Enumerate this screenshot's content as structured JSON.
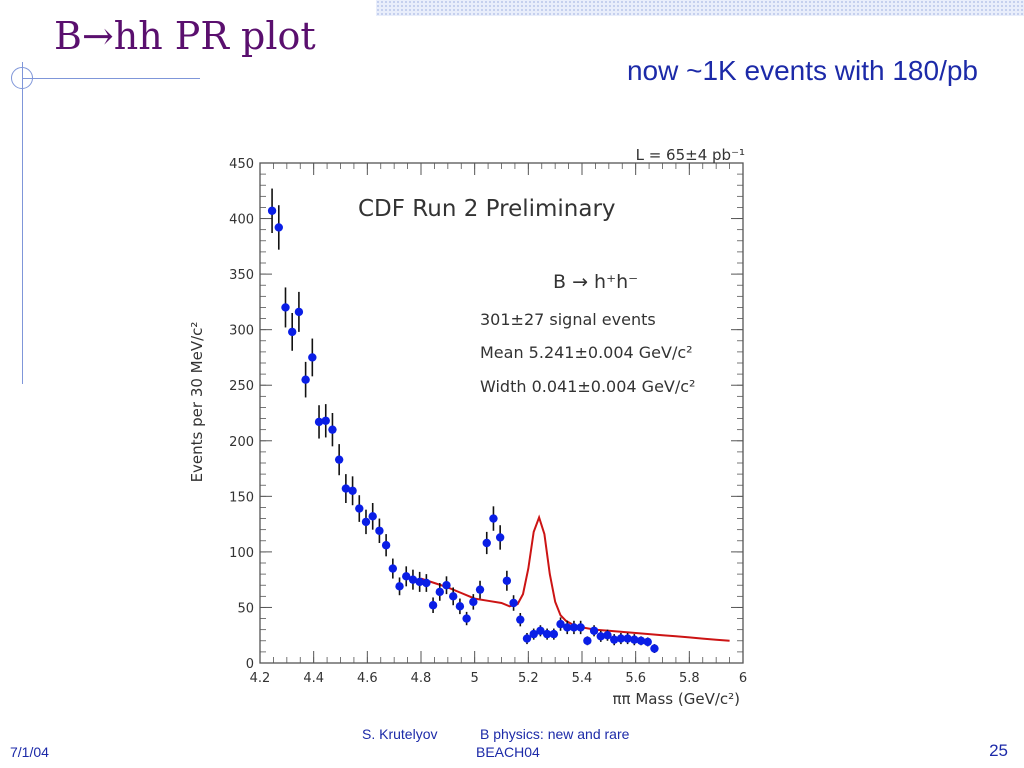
{
  "slide": {
    "title": "B→hh PR plot",
    "subtitle": "now ~1K events with 180/pb",
    "footer": {
      "date": "7/1/04",
      "author": "S. Krutelyov",
      "talk_title": "B physics: new and rare",
      "conference": "BEACH04",
      "page": "25"
    }
  },
  "chart_data": {
    "type": "scatter",
    "title": "CDF Run 2 Preliminary",
    "luminosity": "L = 65±4 pb⁻¹",
    "process": "B → h⁺h⁻",
    "fit_info": [
      "301±27 signal events",
      "Mean 5.241±0.004 GeV/c²",
      "Width 0.041±0.004 GeV/c²"
    ],
    "xlabel": "ππ Mass (GeV/c²)",
    "ylabel": "Events per 30 MeV/c²",
    "xlim": [
      4.2,
      6.0
    ],
    "ylim": [
      0,
      450
    ],
    "xticks": [
      "4.2",
      "4.4",
      "4.6",
      "4.8",
      "5",
      "5.2",
      "5.4",
      "5.6",
      "5.8",
      "6"
    ],
    "yticks": [
      "0",
      "50",
      "100",
      "150",
      "200",
      "250",
      "300",
      "350",
      "400",
      "450"
    ],
    "series": [
      {
        "marker": "circle",
        "color": "#0a1ee6",
        "x": [
          4.22,
          4.245,
          4.27,
          4.295,
          4.32,
          4.345,
          4.37,
          4.395,
          4.42,
          4.445,
          4.47,
          4.495,
          4.52,
          4.545,
          4.57,
          4.595,
          4.62,
          4.645,
          4.67,
          4.695,
          4.72,
          4.745,
          4.77,
          4.795,
          4.82,
          4.845,
          4.87,
          4.895,
          4.92,
          4.945,
          4.97,
          4.995,
          5.02,
          5.045,
          5.07,
          5.095,
          5.12,
          5.145,
          5.17,
          5.195,
          5.22,
          5.245,
          5.27,
          5.295,
          5.32,
          5.345,
          5.37,
          5.395,
          5.42,
          5.445,
          5.47,
          5.495,
          5.52,
          5.545,
          5.57,
          5.595,
          5.62,
          5.645,
          5.67,
          5.695,
          5.72,
          5.745,
          5.77,
          5.795,
          5.82,
          5.845,
          5.87,
          5.895,
          5.92,
          5.945
        ],
        "y": [
          null,
          407,
          392,
          320,
          298,
          316,
          255,
          275,
          217,
          218,
          210,
          183,
          157,
          155,
          139,
          127,
          132,
          119,
          106,
          85,
          69,
          78,
          75,
          73,
          72,
          52,
          64,
          70,
          60,
          51,
          40,
          55,
          66,
          108,
          130,
          113,
          74,
          54,
          39,
          22,
          26,
          29,
          26,
          26,
          35,
          32,
          32,
          32,
          20,
          29,
          24,
          25,
          21,
          22,
          22,
          21,
          20,
          19,
          13,
          null,
          null,
          null,
          null,
          null,
          null,
          null,
          null,
          null,
          null,
          null
        ],
        "yerr": [
          null,
          20,
          20,
          18,
          17,
          18,
          16,
          17,
          15,
          15,
          15,
          14,
          13,
          13,
          12,
          11,
          12,
          11,
          10,
          9,
          8,
          9,
          9,
          9,
          8,
          7,
          8,
          8,
          8,
          7,
          6,
          7,
          8,
          10,
          11,
          11,
          9,
          7,
          6,
          5,
          5,
          5,
          5,
          5,
          6,
          6,
          6,
          6,
          4,
          5,
          5,
          5,
          5,
          5,
          5,
          5,
          4,
          4,
          4,
          null,
          null,
          null,
          null,
          null,
          null,
          null,
          null,
          null,
          null,
          null
        ]
      },
      {
        "name": "fit",
        "color": "#cc1414",
        "x": [
          4.8,
          4.85,
          4.9,
          4.95,
          5.0,
          5.05,
          5.1,
          5.13,
          5.16,
          5.18,
          5.2,
          5.22,
          5.24,
          5.26,
          5.28,
          5.3,
          5.32,
          5.34,
          5.37,
          5.4,
          5.45,
          5.5,
          5.55,
          5.6,
          5.65,
          5.7,
          5.75,
          5.8,
          5.85,
          5.9,
          5.95
        ],
        "y": [
          76,
          72,
          68,
          63,
          58,
          56,
          54,
          51,
          53,
          62,
          85,
          118,
          131,
          116,
          80,
          55,
          43,
          38,
          34,
          32,
          30,
          29,
          28,
          27,
          26,
          25,
          24,
          23,
          22,
          21,
          20
        ]
      }
    ]
  }
}
